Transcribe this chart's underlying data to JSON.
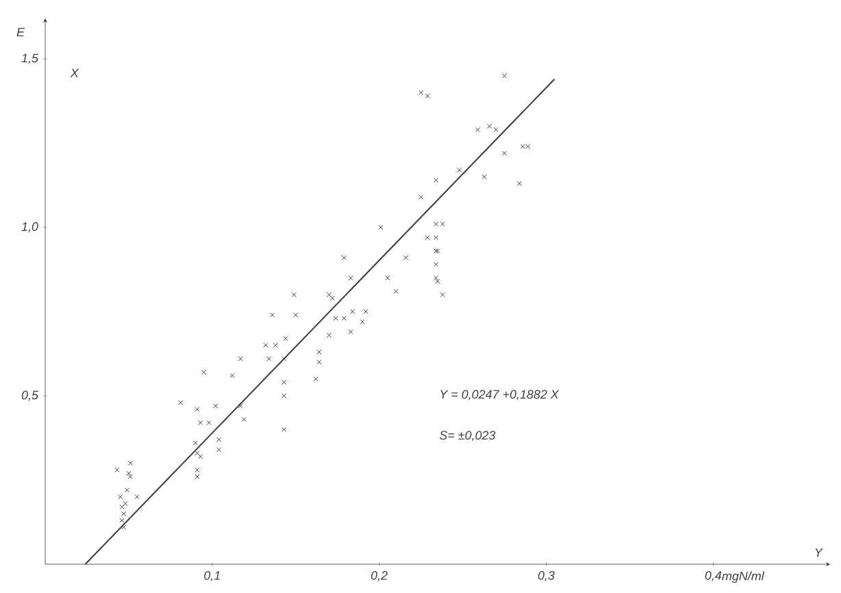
{
  "chart_data": {
    "type": "scatter",
    "xlabel": "Y",
    "ylabel": "E",
    "annotations": [
      "X",
      "mgN/ml",
      "Y = 0,0247 +0,1882 X",
      "S= ±0,023"
    ],
    "xlim": [
      0,
      0.47
    ],
    "ylim": [
      0,
      1.62
    ],
    "xticks": [
      {
        "value": 0.1,
        "label": "0,1"
      },
      {
        "value": 0.2,
        "label": "0,2"
      },
      {
        "value": 0.3,
        "label": "0,3"
      },
      {
        "value": 0.4,
        "label": "0,4"
      }
    ],
    "yticks": [
      {
        "value": 0.5,
        "label": "0,5"
      },
      {
        "value": 1.0,
        "label": "1,0"
      },
      {
        "value": 1.5,
        "label": "1,5"
      }
    ],
    "series": [
      {
        "marker": "cross",
        "color": "#3a3a3a",
        "x": [
          0.149,
          0.17,
          0.172,
          0.136,
          0.15,
          0.174,
          0.179,
          0.184,
          0.192,
          0.19,
          0.183,
          0.17,
          0.132,
          0.138,
          0.144,
          0.117,
          0.134,
          0.143,
          0.164,
          0.164,
          0.162,
          0.095,
          0.112,
          0.143,
          0.143,
          0.081,
          0.091,
          0.102,
          0.117,
          0.093,
          0.098,
          0.119,
          0.143,
          0.09,
          0.104,
          0.104,
          0.091,
          0.093,
          0.091,
          0.091,
          0.051,
          0.043,
          0.05,
          0.051,
          0.049,
          0.055,
          0.045,
          0.048,
          0.046,
          0.047,
          0.046,
          0.047,
          0.201,
          0.179,
          0.216,
          0.183,
          0.205,
          0.21,
          0.225,
          0.229,
          0.225,
          0.275,
          0.259,
          0.266,
          0.27,
          0.286,
          0.289,
          0.275,
          0.234,
          0.248,
          0.263,
          0.284,
          0.234,
          0.238,
          0.229,
          0.234,
          0.234,
          0.235,
          0.234,
          0.234,
          0.235,
          0.238
        ],
        "values": [
          0.8,
          0.8,
          0.79,
          0.74,
          0.74,
          0.73,
          0.73,
          0.75,
          0.75,
          0.72,
          0.69,
          0.68,
          0.65,
          0.65,
          0.67,
          0.61,
          0.61,
          0.61,
          0.63,
          0.6,
          0.55,
          0.57,
          0.56,
          0.54,
          0.5,
          0.48,
          0.46,
          0.47,
          0.47,
          0.42,
          0.42,
          0.43,
          0.4,
          0.36,
          0.37,
          0.34,
          0.33,
          0.32,
          0.28,
          0.26,
          0.3,
          0.28,
          0.27,
          0.26,
          0.22,
          0.2,
          0.2,
          0.18,
          0.17,
          0.15,
          0.13,
          0.11,
          1.0,
          0.91,
          0.91,
          0.85,
          0.85,
          0.81,
          1.4,
          1.39,
          1.09,
          1.45,
          1.29,
          1.3,
          1.29,
          1.24,
          1.24,
          1.22,
          1.14,
          1.17,
          1.15,
          1.13,
          1.01,
          1.01,
          0.97,
          0.97,
          0.93,
          0.93,
          0.89,
          0.85,
          0.84,
          0.8
        ]
      },
      {
        "type": "line",
        "marker": "none",
        "color": "#3a3a3a",
        "x": [
          0.024,
          0.305
        ],
        "values": [
          0,
          1.44
        ]
      }
    ]
  }
}
